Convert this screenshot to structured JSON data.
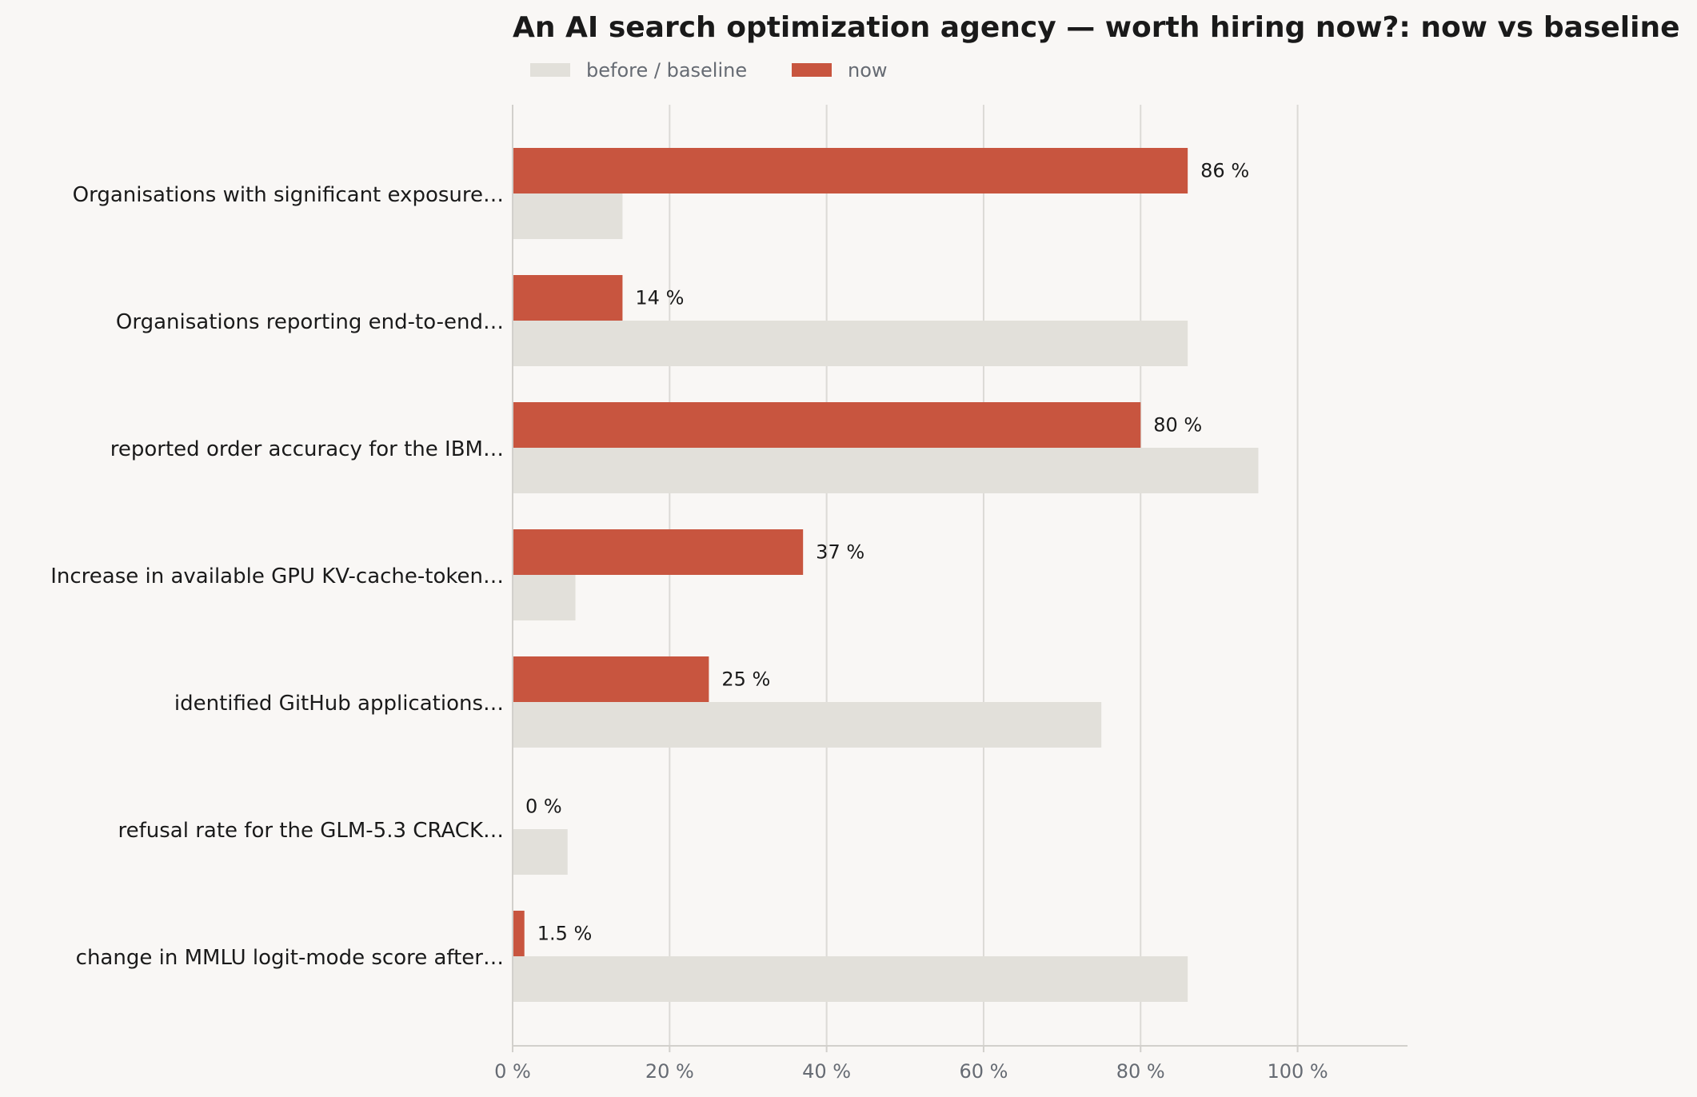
{
  "chart_data": {
    "type": "bar",
    "orientation": "horizontal",
    "title": "An AI search optimization agency — worth hiring now?: now vs baseline",
    "xlabel": "",
    "ylabel": "",
    "xlim": [
      0,
      114
    ],
    "x_ticks": [
      0,
      20,
      40,
      60,
      80,
      100
    ],
    "x_tick_labels": [
      "0 %",
      "20 %",
      "40 %",
      "60 %",
      "80 %",
      "100 %"
    ],
    "grid": "vertical",
    "legend_position": "top-left",
    "categories": [
      "Organisations with significant exposure…",
      "Organisations reporting end-to-end…",
      "reported order accuracy for the IBM…",
      "Increase in available GPU KV-cache-token…",
      "identified GitHub applications…",
      "refusal rate for the GLM-5.3 CRACK…",
      "change in MMLU logit-mode score after…"
    ],
    "series": [
      {
        "name": "before / baseline",
        "color": "#e2e0da",
        "values": [
          14,
          86,
          95,
          8,
          75,
          7,
          86
        ]
      },
      {
        "name": "now",
        "color": "#c8553f",
        "values": [
          86,
          14,
          80,
          37,
          25,
          0,
          1.5
        ],
        "value_labels": [
          "86 %",
          "14 %",
          "80 %",
          "37 %",
          "25 %",
          "0 %",
          "1.5 %"
        ]
      }
    ]
  }
}
